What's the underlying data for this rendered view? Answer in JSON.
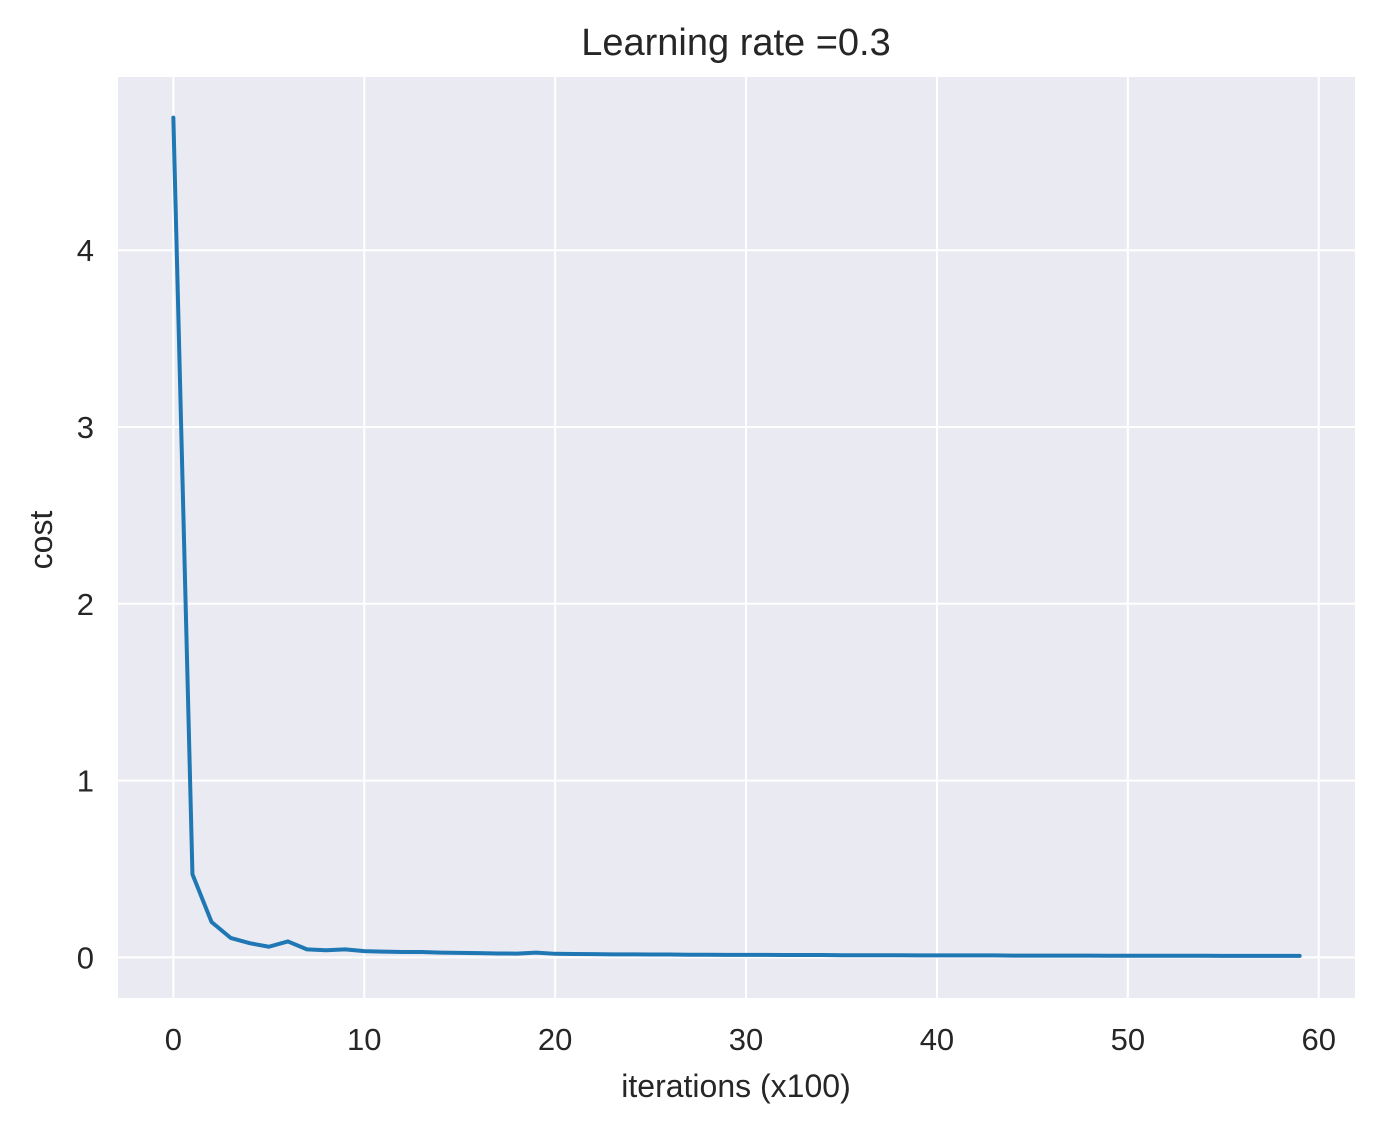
{
  "chart_data": {
    "type": "line",
    "title": "Learning rate =0.3",
    "xlabel": "iterations (x100)",
    "ylabel": "cost",
    "xlim": [
      -2.9,
      61.9
    ],
    "ylim": [
      -0.23,
      4.98
    ],
    "xticks": [
      0,
      10,
      20,
      30,
      40,
      50,
      60
    ],
    "yticks": [
      0,
      1,
      2,
      3,
      4
    ],
    "grid": true,
    "legend": "none",
    "colors": {
      "background": "#eaeaf2",
      "grid": "#ffffff",
      "line": "#1f77b4",
      "text": "#262626"
    },
    "series": [
      {
        "x": [
          0,
          1,
          2,
          3,
          4,
          5,
          6,
          7,
          8,
          9,
          10,
          11,
          12,
          13,
          14,
          15,
          16,
          17,
          18,
          19,
          20,
          21,
          22,
          23,
          24,
          25,
          26,
          27,
          28,
          29,
          30,
          31,
          32,
          33,
          34,
          35,
          36,
          37,
          38,
          39,
          40,
          41,
          42,
          43,
          44,
          45,
          46,
          47,
          48,
          49,
          50,
          51,
          52,
          53,
          54,
          55,
          56,
          57,
          58,
          59
        ],
        "y": [
          4.75,
          0.47,
          0.2,
          0.11,
          0.08,
          0.06,
          0.09,
          0.045,
          0.04,
          0.045,
          0.035,
          0.032,
          0.03,
          0.03,
          0.027,
          0.025,
          0.024,
          0.022,
          0.021,
          0.027,
          0.02,
          0.019,
          0.018,
          0.017,
          0.017,
          0.016,
          0.016,
          0.015,
          0.015,
          0.014,
          0.014,
          0.014,
          0.013,
          0.013,
          0.013,
          0.012,
          0.012,
          0.012,
          0.012,
          0.011,
          0.011,
          0.011,
          0.011,
          0.011,
          0.01,
          0.01,
          0.01,
          0.01,
          0.01,
          0.009,
          0.009,
          0.009,
          0.009,
          0.009,
          0.009,
          0.008,
          0.008,
          0.008,
          0.008,
          0.008
        ]
      }
    ]
  }
}
